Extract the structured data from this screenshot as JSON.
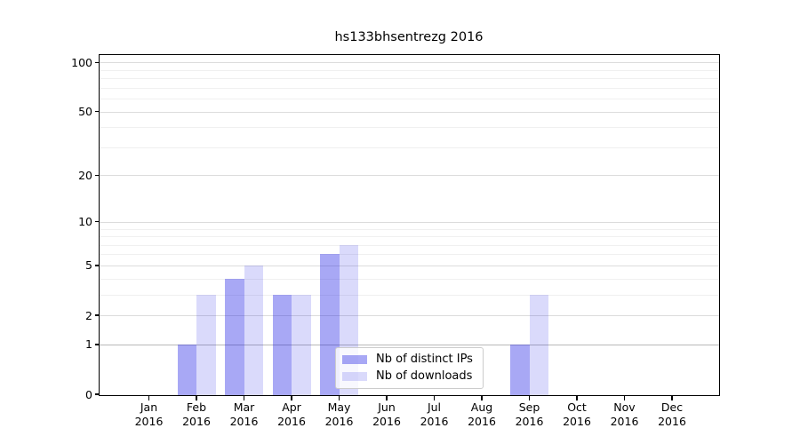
{
  "chart_data": {
    "type": "bar",
    "title": "hs133bhsentrezg 2016",
    "categories": [
      "Jan",
      "Feb",
      "Mar",
      "Apr",
      "May",
      "Jun",
      "Jul",
      "Aug",
      "Sep",
      "Oct",
      "Nov",
      "Dec"
    ],
    "category_year": "2016",
    "series": [
      {
        "name": "Nb of distinct IPs",
        "color": "rgba(25,25,230,0.38)",
        "values": [
          0,
          1,
          4,
          3,
          6,
          0,
          0,
          0,
          1,
          0,
          0,
          0
        ]
      },
      {
        "name": "Nb of downloads",
        "color": "rgba(25,25,230,0.16)",
        "values": [
          0,
          3,
          5,
          3,
          7,
          0,
          0,
          0,
          3,
          0,
          0,
          0
        ]
      }
    ],
    "xlabel": "",
    "ylabel": "",
    "y_scale": "log10(value+1)",
    "y_major_ticks": [
      0,
      1,
      2,
      5,
      10,
      20,
      50,
      100
    ],
    "y_minor_ticks": [
      3,
      4,
      6,
      7,
      8,
      9,
      30,
      40,
      60,
      70,
      80,
      90
    ],
    "ylim": [
      0,
      111
    ],
    "grid": "horizontal",
    "emphasized_gridline_value": 1,
    "legend": {
      "position": "lower-center-right-inside",
      "entries": [
        "Nb of distinct IPs",
        "Nb of downloads"
      ]
    }
  }
}
